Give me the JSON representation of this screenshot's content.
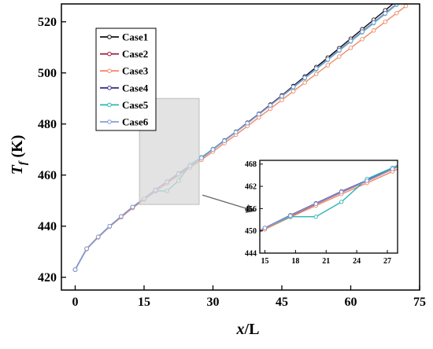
{
  "chart_data": {
    "type": "line",
    "title": "",
    "xlabel": "x/L",
    "ylabel": "T_f (K)",
    "xlabel_var": "x",
    "xlabel_rest": "/L",
    "ylabel_var": "T",
    "ylabel_sub": "f",
    "ylabel_rest": " (K)",
    "xlim": [
      -3,
      75
    ],
    "ylim": [
      415,
      527
    ],
    "xticks": [
      0,
      15,
      30,
      45,
      60,
      75
    ],
    "yticks": [
      420,
      440,
      460,
      480,
      500,
      520
    ],
    "legend": "top-left",
    "grid": false,
    "series": [
      {
        "name": "Case1",
        "color": "#111111",
        "x": [
          0,
          2.5,
          5,
          7.5,
          10,
          12.5,
          15,
          17.5,
          20,
          22.5,
          25,
          27.5,
          30,
          32.5,
          35,
          37.5,
          40,
          42.5,
          45,
          47.5,
          50,
          52.5,
          55,
          57.5,
          60,
          62.5,
          65,
          67.5,
          70,
          72
        ],
        "y": [
          423,
          431.2,
          435.8,
          440,
          443.8,
          447.5,
          450.8,
          454.2,
          457.4,
          460.6,
          463.6,
          466.8,
          470.2,
          473.6,
          477,
          480.5,
          484,
          487.6,
          491.2,
          494.9,
          498.6,
          502.3,
          506,
          509.7,
          513.4,
          517.1,
          520.8,
          524.5,
          528.2,
          531.2
        ]
      },
      {
        "name": "Case2",
        "color": "#9b1b3b",
        "x": [
          0,
          2.5,
          5,
          7.5,
          10,
          12.5,
          15,
          17.5,
          20,
          22.5,
          25,
          27.5,
          30,
          32.5,
          35,
          37.5,
          40,
          42.5,
          45,
          47.5,
          50,
          52.5,
          55,
          57.5,
          60,
          62.5,
          65,
          67.5,
          70,
          72
        ],
        "y": [
          423,
          431.2,
          435.8,
          440,
          443.8,
          447.4,
          450.7,
          454,
          457.2,
          460.4,
          463.4,
          466.6,
          470,
          473.4,
          476.8,
          480.3,
          483.8,
          487.3,
          490.9,
          494.5,
          498.1,
          501.7,
          505.3,
          508.9,
          512.5,
          516.1,
          519.7,
          523.3,
          526.8,
          529.8
        ]
      },
      {
        "name": "Case3",
        "color": "#f08a66",
        "x": [
          0,
          2.5,
          5,
          7.5,
          10,
          12.5,
          15,
          17.5,
          20,
          22.5,
          25,
          27.5,
          30,
          32.5,
          35,
          37.5,
          40,
          42.5,
          45,
          47.5,
          50,
          52.5,
          55,
          57.5,
          60,
          62.5,
          65,
          67.5,
          70,
          72
        ],
        "y": [
          423,
          431,
          435.6,
          439.8,
          443.5,
          447.1,
          450.4,
          453.7,
          456.8,
          459.9,
          462.9,
          466,
          469.2,
          472.5,
          475.8,
          479.2,
          482.6,
          486,
          489.4,
          492.8,
          496.2,
          499.6,
          503,
          506.4,
          509.8,
          513.2,
          516.6,
          520,
          523.4,
          526.2
        ]
      },
      {
        "name": "Case4",
        "color": "#3b2e8c",
        "x": [
          0,
          2.5,
          5,
          7.5,
          10,
          12.5,
          15,
          17.5,
          20,
          22.5,
          25,
          27.5,
          30,
          32.5,
          35,
          37.5,
          40,
          42.5,
          45,
          47.5,
          50,
          52.5,
          55,
          57.5,
          60,
          62.5,
          65,
          67.5,
          70,
          72
        ],
        "y": [
          423,
          431.2,
          435.8,
          440,
          443.8,
          447.5,
          450.8,
          454.2,
          457.4,
          460.6,
          463.6,
          466.8,
          470.1,
          473.5,
          476.9,
          480.4,
          483.9,
          487.4,
          491,
          494.6,
          498.2,
          501.8,
          505.4,
          509,
          512.6,
          516.2,
          519.8,
          523.4,
          527,
          529.6
        ]
      },
      {
        "name": "Case5",
        "color": "#2cb5b5",
        "x": [
          0,
          2.5,
          5,
          7.5,
          10,
          12.5,
          15,
          17.5,
          20,
          22.5,
          25,
          27.5,
          30,
          32.5,
          35,
          37.5,
          40,
          42.5,
          45,
          47.5,
          50,
          52.5,
          55,
          57.5,
          60,
          62.5,
          65,
          67.5,
          70,
          72
        ],
        "y": [
          423,
          431.2,
          435.8,
          440,
          443.8,
          447.5,
          450.8,
          453.8,
          453.8,
          457.8,
          464,
          467,
          470.2,
          473.5,
          476.9,
          480.3,
          483.8,
          487.3,
          490.8,
          494.3,
          497.9,
          501.5,
          505.1,
          508.7,
          512.3,
          515.9,
          519.5,
          523.1,
          526.7,
          529.4
        ]
      },
      {
        "name": "Case6",
        "color": "#8a9bd6",
        "x": [
          0,
          2.5,
          5,
          7.5,
          10,
          12.5,
          15,
          17.5,
          20,
          22.5,
          25,
          27.5,
          30,
          32.5,
          35,
          37.5,
          40,
          42.5,
          45,
          47.5,
          50,
          52.5,
          55,
          57.5,
          60,
          62.5,
          65,
          67.5,
          70,
          72
        ],
        "y": [
          423,
          431.2,
          435.8,
          440,
          443.8,
          447.5,
          450.8,
          454.1,
          457.3,
          460.5,
          463.5,
          466.7,
          470,
          473.4,
          476.8,
          480.3,
          483.8,
          487.3,
          490.9,
          494.5,
          498.1,
          501.7,
          505.3,
          508.9,
          512.5,
          516.1,
          519.7,
          523.3,
          526.9,
          529.5
        ]
      }
    ],
    "inset": {
      "xlim": [
        14.5,
        28
      ],
      "ylim": [
        444,
        469
      ],
      "xticks": [
        15,
        18,
        21,
        24,
        27
      ],
      "yticks": [
        444,
        450,
        456,
        462,
        468
      ],
      "zoom_region": {
        "x": [
          14,
          27
        ],
        "y": [
          448.5,
          490
        ]
      }
    }
  }
}
